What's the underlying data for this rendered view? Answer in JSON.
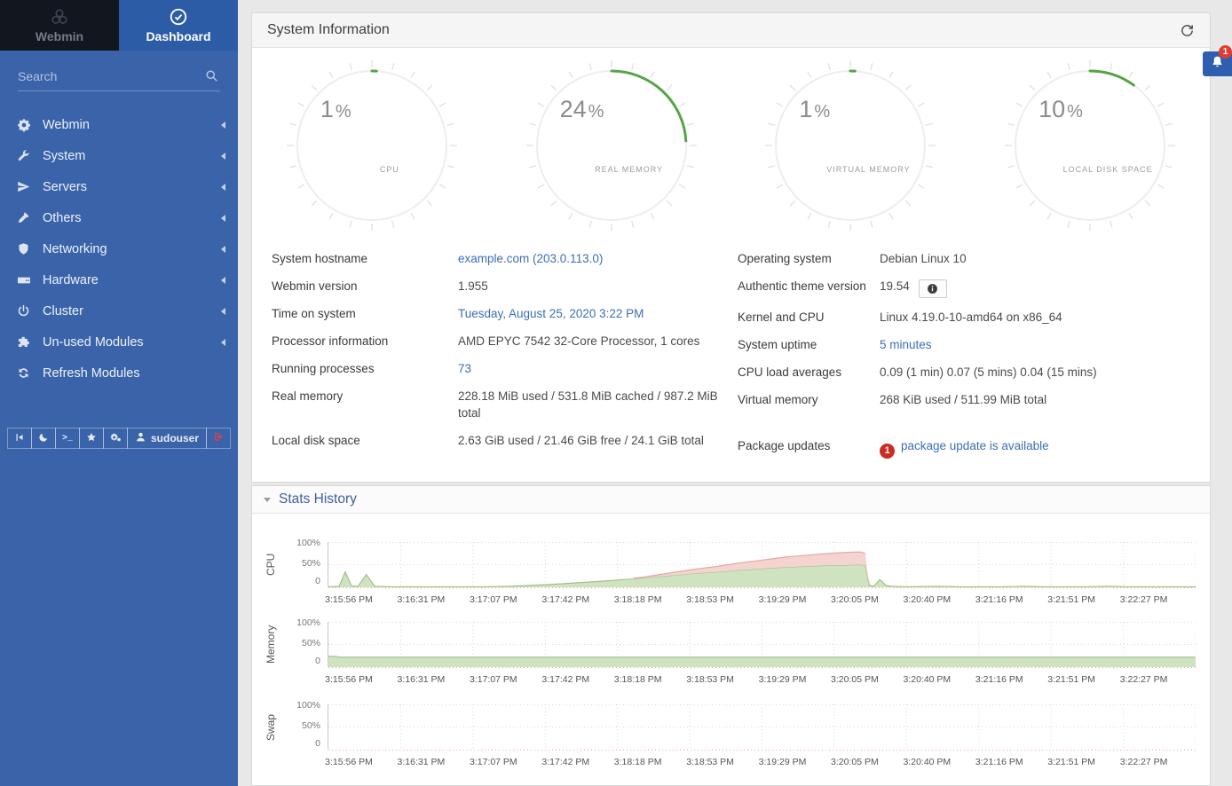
{
  "sidebar": {
    "tabs": [
      {
        "label": "Webmin",
        "icon": "webmin-logo-icon"
      },
      {
        "label": "Dashboard",
        "icon": "dashboard-gauge-icon",
        "active": true
      }
    ],
    "search": {
      "placeholder": "Search"
    },
    "menu": [
      {
        "label": "Webmin",
        "icon": "gear-icon",
        "caret": true
      },
      {
        "label": "System",
        "icon": "wrench-icon",
        "caret": true
      },
      {
        "label": "Servers",
        "icon": "paper-plane-icon",
        "caret": true
      },
      {
        "label": "Others",
        "icon": "hammer-icon",
        "caret": true
      },
      {
        "label": "Networking",
        "icon": "shield-icon",
        "caret": true
      },
      {
        "label": "Hardware",
        "icon": "hard-drive-icon",
        "caret": true
      },
      {
        "label": "Cluster",
        "icon": "power-icon",
        "caret": true
      },
      {
        "label": "Un-used Modules",
        "icon": "puzzle-icon",
        "caret": true
      },
      {
        "label": "Refresh Modules",
        "icon": "refresh-icon",
        "caret": false
      }
    ],
    "user": "sudouser"
  },
  "system_panel": {
    "title": "System Information"
  },
  "gauges": [
    {
      "value": 1,
      "unit": "%",
      "label": "CPU"
    },
    {
      "value": 24,
      "unit": "%",
      "label": "REAL MEMORY"
    },
    {
      "value": 1,
      "unit": "%",
      "label": "VIRTUAL MEMORY"
    },
    {
      "value": 10,
      "unit": "%",
      "label": "LOCAL DISK SPACE"
    }
  ],
  "info": {
    "left": [
      {
        "label": "System hostname",
        "value": "example.com (203.0.113.0)",
        "link": true
      },
      {
        "label": "Webmin version",
        "value": "1.955"
      },
      {
        "label": "Time on system",
        "value": "Tuesday, August 25, 2020 3:22 PM",
        "link": true
      },
      {
        "label": "Processor information",
        "value": "AMD EPYC 7542 32-Core Processor, 1 cores"
      },
      {
        "label": "Running processes",
        "value": "73",
        "link": true
      },
      {
        "label": "Real memory",
        "value": "228.18 MiB used / 531.8 MiB cached / 987.2 MiB total"
      },
      {
        "label": "Local disk space",
        "value": "2.63 GiB used / 21.46 GiB free / 24.1 GiB total"
      }
    ],
    "right": [
      {
        "label": "Operating system",
        "value": "Debian Linux 10"
      },
      {
        "label": "Authentic theme version",
        "value": "19.54",
        "chip": "info-icon"
      },
      {
        "label": "Kernel and CPU",
        "value": "Linux 4.19.0-10-amd64 on x86_64"
      },
      {
        "label": "System uptime",
        "value": "5 minutes",
        "link": true
      },
      {
        "label": "CPU load averages",
        "value": "0.09 (1 min) 0.07 (5 mins) 0.04 (15 mins)"
      },
      {
        "label": "Virtual memory",
        "value": "268 KiB used / 511.99 MiB total"
      },
      {
        "label": "Package updates",
        "value": "package update is available",
        "badge": "1",
        "link": true,
        "gap_before": true
      }
    ]
  },
  "stats_panel": {
    "title": "Stats History"
  },
  "notifications": {
    "badge": "1"
  },
  "colors": {
    "sidebar": "#3a63aa",
    "sidebar_tab_active": "#2d5ca6",
    "sidebar_tab_webmin_bg": "#12161e",
    "link_blue": "#3c6eb4",
    "gauge_green": "#55a546",
    "badge_red": "#ce2a21",
    "stats_title_blue": "#40609c",
    "chart_green_fill": "#cfe3c0",
    "chart_red_fill": "#f5d4d0"
  },
  "chart_data": [
    {
      "type": "area",
      "title": "CPU",
      "ylabel": "CPU",
      "yticks": [
        "100%",
        "50%",
        "0"
      ],
      "ylim": [
        0,
        100
      ],
      "grid": true,
      "legend": "none",
      "x_span_seconds": 412,
      "x_ticks": [
        "3:15:56 PM",
        "3:16:31 PM",
        "3:17:07 PM",
        "3:17:42 PM",
        "3:18:18 PM",
        "3:18:53 PM",
        "3:19:29 PM",
        "3:20:05 PM",
        "3:20:40 PM",
        "3:21:16 PM",
        "3:21:51 PM",
        "3:22:27 PM"
      ],
      "series": [
        {
          "name": "cpu-used",
          "fill": "#cfe3c0",
          "stroke": "#a3c18b",
          "stacked": false,
          "points": [
            [
              0,
              1
            ],
            [
              5,
              2
            ],
            [
              8,
              34
            ],
            [
              11,
              3
            ],
            [
              14,
              2
            ],
            [
              18,
              28
            ],
            [
              22,
              2
            ],
            [
              30,
              1
            ],
            [
              55,
              1
            ],
            [
              75,
              1
            ],
            [
              85,
              2
            ],
            [
              95,
              4
            ],
            [
              105,
              6
            ],
            [
              115,
              9
            ],
            [
              125,
              12
            ],
            [
              135,
              15
            ],
            [
              145,
              19
            ],
            [
              155,
              23
            ],
            [
              165,
              27
            ],
            [
              175,
              31
            ],
            [
              185,
              34
            ],
            [
              195,
              38
            ],
            [
              205,
              41
            ],
            [
              215,
              44
            ],
            [
              225,
              46
            ],
            [
              235,
              48
            ],
            [
              245,
              49
            ],
            [
              252,
              50
            ],
            [
              255,
              49
            ],
            [
              257,
              5
            ],
            [
              259,
              2
            ],
            [
              262,
              17
            ],
            [
              265,
              4
            ],
            [
              268,
              2
            ],
            [
              275,
              1
            ],
            [
              290,
              2
            ],
            [
              300,
              1
            ],
            [
              320,
              1
            ],
            [
              330,
              2
            ],
            [
              340,
              1
            ],
            [
              360,
              1
            ],
            [
              370,
              2
            ],
            [
              380,
              1
            ],
            [
              400,
              1
            ],
            [
              412,
              1
            ]
          ]
        },
        {
          "name": "cpu-system",
          "fill": "#f5d4d0",
          "stroke": "#dfa9a2",
          "stacked": true,
          "points": [
            [
              0,
              0
            ],
            [
              140,
              0
            ],
            [
              150,
              2
            ],
            [
              160,
              5
            ],
            [
              170,
              8
            ],
            [
              180,
              11
            ],
            [
              190,
              14
            ],
            [
              200,
              17
            ],
            [
              210,
              20
            ],
            [
              220,
              23
            ],
            [
              230,
              25
            ],
            [
              240,
              27
            ],
            [
              248,
              28
            ],
            [
              253,
              28
            ],
            [
              255,
              26
            ],
            [
              257,
              0
            ],
            [
              412,
              0
            ]
          ]
        }
      ]
    },
    {
      "type": "area",
      "title": "Memory",
      "ylabel": "Memory",
      "yticks": [
        "100%",
        "50%",
        "0"
      ],
      "ylim": [
        0,
        100
      ],
      "grid": true,
      "legend": "none",
      "x_span_seconds": 412,
      "x_ticks": [
        "3:15:56 PM",
        "3:16:31 PM",
        "3:17:07 PM",
        "3:17:42 PM",
        "3:18:18 PM",
        "3:18:53 PM",
        "3:19:29 PM",
        "3:20:05 PM",
        "3:20:40 PM",
        "3:21:16 PM",
        "3:21:51 PM",
        "3:22:27 PM"
      ],
      "series": [
        {
          "name": "memory-used",
          "fill": "#cfe3c0",
          "stroke": "#a3c18b",
          "stacked": false,
          "points": [
            [
              0,
              24
            ],
            [
              3,
              24
            ],
            [
              6,
              22
            ],
            [
              100,
              22
            ],
            [
              200,
              22
            ],
            [
              300,
              22
            ],
            [
              412,
              22
            ]
          ]
        }
      ]
    },
    {
      "type": "area",
      "title": "Swap",
      "ylabel": "Swap",
      "yticks": [
        "100%",
        "50%",
        "0"
      ],
      "ylim": [
        0,
        100
      ],
      "grid": true,
      "legend": "none",
      "x_span_seconds": 412,
      "x_ticks": [
        "3:15:56 PM",
        "3:16:31 PM",
        "3:17:07 PM",
        "3:17:42 PM",
        "3:18:18 PM",
        "3:18:53 PM",
        "3:19:29 PM",
        "3:20:05 PM",
        "3:20:40 PM",
        "3:21:16 PM",
        "3:21:51 PM",
        "3:22:27 PM"
      ],
      "series": [
        {
          "name": "swap-used",
          "fill": "#cfe3c0",
          "stroke": "#a3c18b",
          "stacked": false,
          "points": [
            [
              0,
              0
            ],
            [
              412,
              0
            ]
          ]
        }
      ]
    }
  ]
}
